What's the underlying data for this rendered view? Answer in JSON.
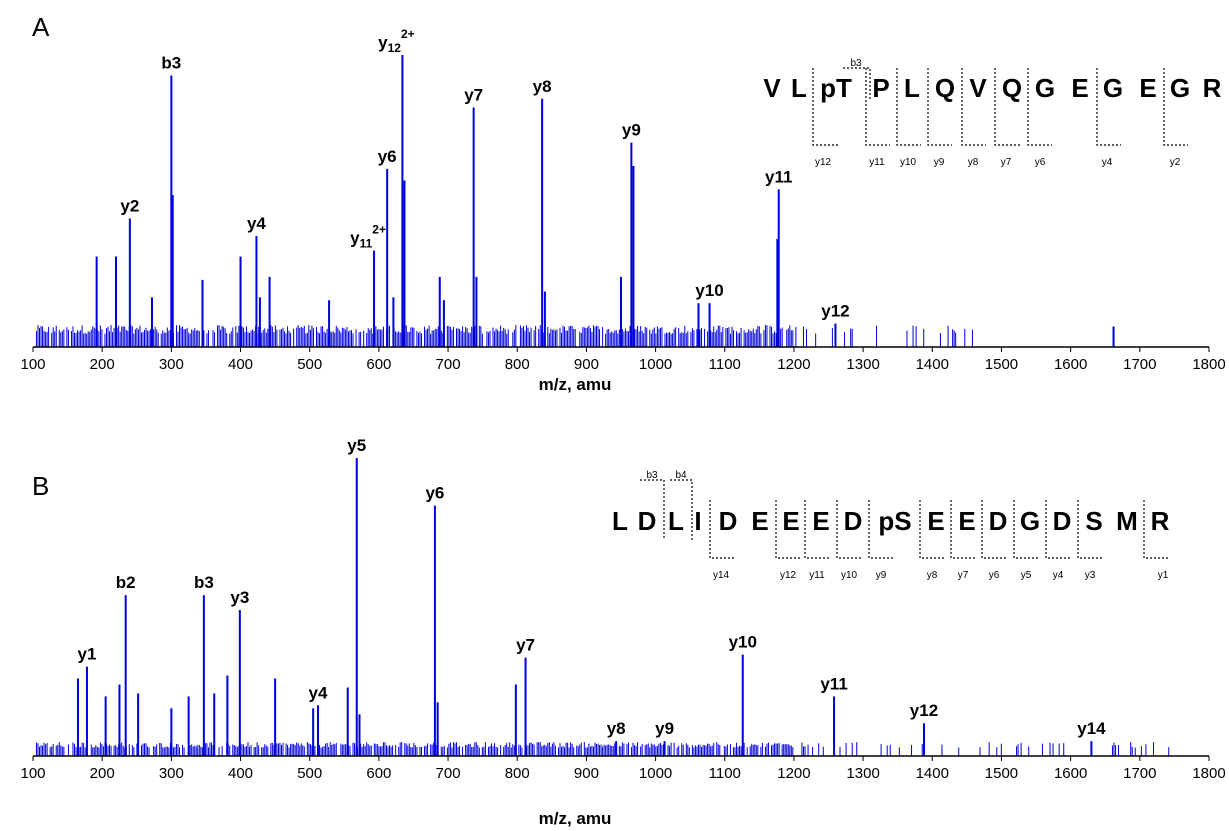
{
  "chart_data": [
    {
      "type": "bar",
      "panel": "A",
      "xlabel": "m/z, amu",
      "ylabel": "",
      "xlim": [
        100,
        1800
      ],
      "xticks": [
        100,
        200,
        300,
        400,
        500,
        600,
        700,
        800,
        900,
        1000,
        1100,
        1200,
        1300,
        1400,
        1500,
        1600,
        1700,
        1800
      ],
      "color": "#0000dd",
      "peaks": [
        {
          "mz": 192,
          "rel": 0.31
        },
        {
          "mz": 220,
          "rel": 0.31
        },
        {
          "mz": 240,
          "rel": 0.44,
          "label": "y2"
        },
        {
          "mz": 272,
          "rel": 0.17
        },
        {
          "mz": 300,
          "rel": 0.93,
          "label": "b3"
        },
        {
          "mz": 302,
          "rel": 0.52
        },
        {
          "mz": 345,
          "rel": 0.23
        },
        {
          "mz": 400,
          "rel": 0.31
        },
        {
          "mz": 423,
          "rel": 0.38,
          "label": "y4"
        },
        {
          "mz": 428,
          "rel": 0.17
        },
        {
          "mz": 442,
          "rel": 0.24
        },
        {
          "mz": 528,
          "rel": 0.16
        },
        {
          "mz": 593,
          "rel": 0.33,
          "label": "y11",
          "sup": "2+"
        },
        {
          "mz": 612,
          "rel": 0.61,
          "label": "y6"
        },
        {
          "mz": 621,
          "rel": 0.17
        },
        {
          "mz": 634,
          "rel": 1.0,
          "label": "y12",
          "sup": "2+"
        },
        {
          "mz": 637,
          "rel": 0.57
        },
        {
          "mz": 688,
          "rel": 0.24
        },
        {
          "mz": 694,
          "rel": 0.16
        },
        {
          "mz": 737,
          "rel": 0.82,
          "label": "y7"
        },
        {
          "mz": 741,
          "rel": 0.24
        },
        {
          "mz": 836,
          "rel": 0.85,
          "label": "y8"
        },
        {
          "mz": 840,
          "rel": 0.19
        },
        {
          "mz": 950,
          "rel": 0.24
        },
        {
          "mz": 965,
          "rel": 0.7,
          "label": "y9"
        },
        {
          "mz": 968,
          "rel": 0.62
        },
        {
          "mz": 1062,
          "rel": 0.15
        },
        {
          "mz": 1078,
          "rel": 0.15,
          "label": "y10"
        },
        {
          "mz": 1176,
          "rel": 0.37
        },
        {
          "mz": 1178,
          "rel": 0.54,
          "label": "y11"
        },
        {
          "mz": 1260,
          "rel": 0.08,
          "label": "y12"
        },
        {
          "mz": 1662,
          "rel": 0.07
        }
      ],
      "sequence": {
        "residues": [
          "V",
          "L",
          "pT",
          "P",
          "L",
          "Q",
          "V",
          "Q",
          "G",
          "E",
          "G",
          "E",
          "G",
          "R"
        ],
        "b_ions": [
          "b3"
        ],
        "y_ions": [
          "y12",
          "y11",
          "y10",
          "y9",
          "y8",
          "y7",
          "y6",
          "y4",
          "y2"
        ]
      }
    },
    {
      "type": "bar",
      "panel": "B",
      "xlabel": "m/z, amu",
      "ylabel": "",
      "xlim": [
        100,
        1800
      ],
      "xticks": [
        100,
        200,
        300,
        400,
        500,
        600,
        700,
        800,
        900,
        1000,
        1100,
        1200,
        1300,
        1400,
        1500,
        1600,
        1700,
        1800
      ],
      "color": "#0000dd",
      "peaks": [
        {
          "mz": 165,
          "rel": 0.26
        },
        {
          "mz": 178,
          "rel": 0.3,
          "label": "y1"
        },
        {
          "mz": 205,
          "rel": 0.2
        },
        {
          "mz": 225,
          "rel": 0.24
        },
        {
          "mz": 234,
          "rel": 0.54,
          "label": "b2"
        },
        {
          "mz": 252,
          "rel": 0.21
        },
        {
          "mz": 300,
          "rel": 0.16
        },
        {
          "mz": 325,
          "rel": 0.2
        },
        {
          "mz": 347,
          "rel": 0.54,
          "label": "b3"
        },
        {
          "mz": 362,
          "rel": 0.21
        },
        {
          "mz": 381,
          "rel": 0.27
        },
        {
          "mz": 399,
          "rel": 0.49,
          "label": "y3"
        },
        {
          "mz": 450,
          "rel": 0.26
        },
        {
          "mz": 505,
          "rel": 0.16
        },
        {
          "mz": 512,
          "rel": 0.17,
          "label": "y4"
        },
        {
          "mz": 555,
          "rel": 0.23
        },
        {
          "mz": 568,
          "rel": 1.0,
          "label": "y5"
        },
        {
          "mz": 572,
          "rel": 0.14
        },
        {
          "mz": 681,
          "rel": 0.84,
          "label": "y6"
        },
        {
          "mz": 685,
          "rel": 0.18
        },
        {
          "mz": 798,
          "rel": 0.24
        },
        {
          "mz": 812,
          "rel": 0.33,
          "label": "y7"
        },
        {
          "mz": 943,
          "rel": 0.05,
          "label": "y8"
        },
        {
          "mz": 1013,
          "rel": 0.05,
          "label": "y9"
        },
        {
          "mz": 1126,
          "rel": 0.34,
          "label": "y10"
        },
        {
          "mz": 1258,
          "rel": 0.2,
          "label": "y11"
        },
        {
          "mz": 1388,
          "rel": 0.11,
          "label": "y12"
        },
        {
          "mz": 1630,
          "rel": 0.05,
          "label": "y14"
        }
      ],
      "sequence": {
        "residues": [
          "L",
          "D",
          "L",
          "I",
          "D",
          "E",
          "E",
          "E",
          "D",
          "pS",
          "E",
          "E",
          "D",
          "G",
          "D",
          "S",
          "M",
          "R"
        ],
        "b_ions": [
          "b3",
          "b4"
        ],
        "y_ions": [
          "y14",
          "y12",
          "y11",
          "y10",
          "y9",
          "y8",
          "y7",
          "y6",
          "y5",
          "y4",
          "y3",
          "y1"
        ]
      }
    }
  ]
}
